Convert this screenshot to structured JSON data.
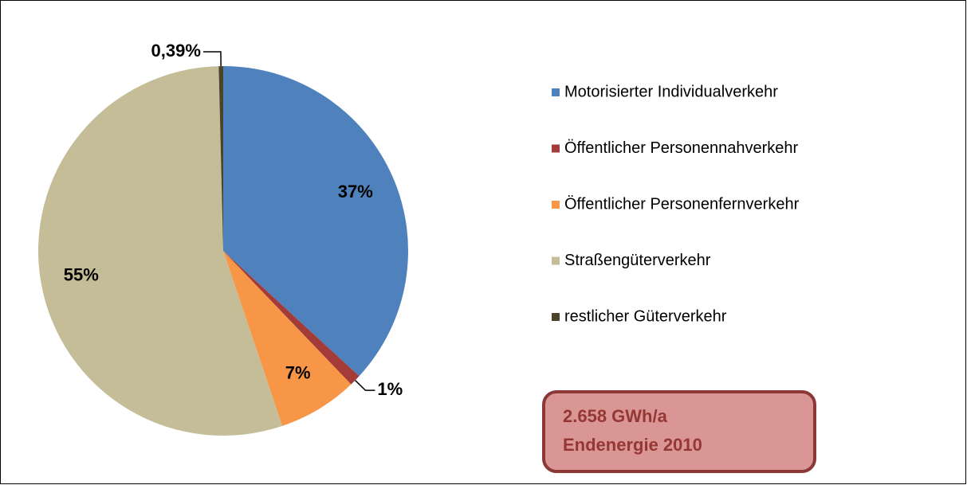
{
  "chart_data": {
    "type": "pie",
    "categories": [
      "Motorisierter Individualverkehr",
      "Öffentlicher Personennahverkehr",
      "Öffentlicher Personenfernverkehr",
      "Straßengüterverkehr",
      "restlicher Güterverkehr"
    ],
    "values": [
      37,
      1,
      7,
      55,
      0.39
    ],
    "value_labels": [
      "37%",
      "1%",
      "7%",
      "55%",
      "0,39%"
    ],
    "colors": [
      "#4f81bd",
      "#a33b38",
      "#f79646",
      "#c4bd97",
      "#4a452a"
    ],
    "legend": "right",
    "annotation": [
      "2.658 GWh/a",
      "Endenergie 2010"
    ]
  }
}
